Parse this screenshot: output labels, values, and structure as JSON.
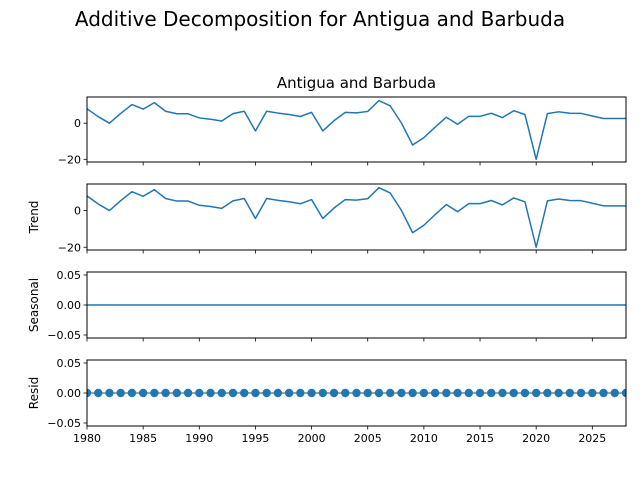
{
  "chart_data": {
    "type": "line",
    "suptitle": "Additive Decomposition for Antigua and Barbuda",
    "color": "#1f77b4",
    "x": [
      1980,
      1981,
      1982,
      1983,
      1984,
      1985,
      1986,
      1987,
      1988,
      1989,
      1990,
      1991,
      1992,
      1993,
      1994,
      1995,
      1996,
      1997,
      1998,
      1999,
      2000,
      2001,
      2002,
      2003,
      2004,
      2005,
      2006,
      2007,
      2008,
      2009,
      2010,
      2011,
      2012,
      2013,
      2014,
      2015,
      2016,
      2017,
      2018,
      2019,
      2020,
      2021,
      2022,
      2023,
      2024,
      2025,
      2026,
      2027,
      2028
    ],
    "xlim": [
      1980,
      2028
    ],
    "xticks": [
      1980,
      1985,
      1990,
      1995,
      2000,
      2005,
      2010,
      2015,
      2020,
      2025
    ],
    "xtick_labels": [
      "1980",
      "1985",
      "1990",
      "1995",
      "2000",
      "2005",
      "2010",
      "2015",
      "2020",
      "2025"
    ],
    "panels": [
      {
        "name": "observed",
        "title": "Antigua and Barbuda",
        "ylabel": "",
        "style": "line",
        "ylim": [
          -21.5,
          14.5
        ],
        "yticks": [
          -20,
          0
        ],
        "ytick_labels": [
          "−20",
          "0"
        ],
        "values": [
          8.0,
          3.6,
          0.0,
          5.4,
          10.3,
          7.8,
          11.4,
          6.6,
          5.2,
          5.2,
          2.9,
          2.2,
          1.2,
          5.3,
          6.6,
          -4.3,
          6.6,
          5.6,
          4.8,
          3.7,
          6.0,
          -4.3,
          1.4,
          6.0,
          5.7,
          6.5,
          12.5,
          9.6,
          0.1,
          -12.1,
          -8.0,
          -2.2,
          3.3,
          -0.6,
          3.8,
          3.8,
          5.5,
          3.1,
          6.9,
          4.8,
          -20.0,
          5.3,
          6.3,
          5.5,
          5.4,
          4.0,
          2.6,
          2.6,
          2.6
        ]
      },
      {
        "name": "trend",
        "title": "",
        "ylabel": "Trend",
        "style": "line",
        "ylim": [
          -21.5,
          14.5
        ],
        "yticks": [
          -20,
          0
        ],
        "ytick_labels": [
          "−20",
          "0"
        ],
        "values": [
          8.0,
          3.6,
          0.0,
          5.4,
          10.3,
          7.8,
          11.4,
          6.6,
          5.2,
          5.2,
          2.9,
          2.2,
          1.2,
          5.3,
          6.6,
          -4.3,
          6.6,
          5.6,
          4.8,
          3.7,
          6.0,
          -4.3,
          1.4,
          6.0,
          5.7,
          6.5,
          12.5,
          9.6,
          0.1,
          -12.1,
          -8.0,
          -2.2,
          3.3,
          -0.6,
          3.8,
          3.8,
          5.5,
          3.1,
          6.9,
          4.8,
          -20.0,
          5.3,
          6.3,
          5.5,
          5.4,
          4.0,
          2.6,
          2.6,
          2.6
        ]
      },
      {
        "name": "seasonal",
        "title": "",
        "ylabel": "Seasonal",
        "style": "line",
        "ylim": [
          -0.055,
          0.055
        ],
        "yticks": [
          -0.05,
          0.0,
          0.05
        ],
        "ytick_labels": [
          "−0.05",
          "0.00",
          "0.05"
        ],
        "values": [
          0,
          0,
          0,
          0,
          0,
          0,
          0,
          0,
          0,
          0,
          0,
          0,
          0,
          0,
          0,
          0,
          0,
          0,
          0,
          0,
          0,
          0,
          0,
          0,
          0,
          0,
          0,
          0,
          0,
          0,
          0,
          0,
          0,
          0,
          0,
          0,
          0,
          0,
          0,
          0,
          0,
          0,
          0,
          0,
          0,
          0,
          0,
          0,
          0
        ]
      },
      {
        "name": "resid",
        "title": "",
        "ylabel": "Resid",
        "style": "markers",
        "ylim": [
          -0.055,
          0.055
        ],
        "yticks": [
          -0.05,
          0.0,
          0.05
        ],
        "ytick_labels": [
          "−0.05",
          "0.00",
          "0.05"
        ],
        "values": [
          0,
          0,
          0,
          0,
          0,
          0,
          0,
          0,
          0,
          0,
          0,
          0,
          0,
          0,
          0,
          0,
          0,
          0,
          0,
          0,
          0,
          0,
          0,
          0,
          0,
          0,
          0,
          0,
          0,
          0,
          0,
          0,
          0,
          0,
          0,
          0,
          0,
          0,
          0,
          0,
          0,
          0,
          0,
          0,
          0,
          0,
          0,
          0,
          0
        ]
      }
    ]
  }
}
